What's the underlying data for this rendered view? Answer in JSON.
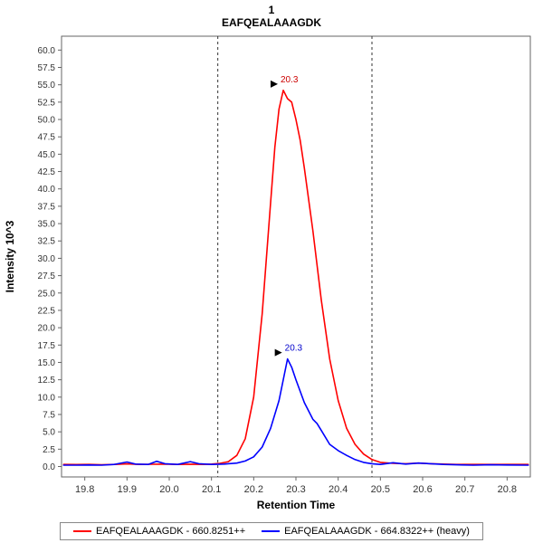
{
  "title": {
    "line1": "1",
    "line2": "EAFQEALAAAGDK"
  },
  "chart_data": {
    "type": "line",
    "title": "1",
    "subtitle": "EAFQEALAAAGDK",
    "xlabel": "Retention Time",
    "ylabel": "Intensity 10^3",
    "xlim": [
      19.745,
      20.855
    ],
    "ylim": [
      -1.5,
      62
    ],
    "grid": false,
    "legend_position": "bottom",
    "x_ticks": [
      "19.8",
      "19.9",
      "20.0",
      "20.1",
      "20.2",
      "20.3",
      "20.4",
      "20.5",
      "20.6",
      "20.7",
      "20.8"
    ],
    "y_ticks": [
      "0.0",
      "2.5",
      "5.0",
      "7.5",
      "10.0",
      "12.5",
      "15.0",
      "17.5",
      "20.0",
      "22.5",
      "25.0",
      "27.5",
      "30.0",
      "32.5",
      "35.0",
      "37.5",
      "40.0",
      "42.5",
      "45.0",
      "47.5",
      "50.0",
      "52.5",
      "55.0",
      "57.5",
      "60.0"
    ],
    "integration_boundaries": [
      20.115,
      20.48
    ],
    "series": [
      {
        "name": "EAFQEALAAAGDK - 660.8251++",
        "color": "#ff0000",
        "points": [
          [
            19.75,
            0.3
          ],
          [
            19.78,
            0.28
          ],
          [
            19.81,
            0.3
          ],
          [
            19.84,
            0.26
          ],
          [
            19.87,
            0.3
          ],
          [
            19.9,
            0.38
          ],
          [
            19.93,
            0.3
          ],
          [
            19.96,
            0.32
          ],
          [
            19.99,
            0.35
          ],
          [
            20.02,
            0.3
          ],
          [
            20.05,
            0.34
          ],
          [
            20.08,
            0.3
          ],
          [
            20.1,
            0.35
          ],
          [
            20.12,
            0.45
          ],
          [
            20.14,
            0.7
          ],
          [
            20.16,
            1.6
          ],
          [
            20.18,
            4.0
          ],
          [
            20.2,
            10.0
          ],
          [
            20.22,
            22.0
          ],
          [
            20.24,
            38.0
          ],
          [
            20.25,
            46.0
          ],
          [
            20.26,
            51.5
          ],
          [
            20.27,
            54.2
          ],
          [
            20.28,
            53.0
          ],
          [
            20.29,
            52.5
          ],
          [
            20.3,
            50.0
          ],
          [
            20.31,
            47.0
          ],
          [
            20.32,
            43.0
          ],
          [
            20.34,
            34.0
          ],
          [
            20.36,
            24.0
          ],
          [
            20.38,
            15.5
          ],
          [
            20.4,
            9.5
          ],
          [
            20.42,
            5.5
          ],
          [
            20.44,
            3.2
          ],
          [
            20.46,
            1.8
          ],
          [
            20.48,
            1.0
          ],
          [
            20.5,
            0.6
          ],
          [
            20.53,
            0.45
          ],
          [
            20.56,
            0.4
          ],
          [
            20.59,
            0.5
          ],
          [
            20.62,
            0.4
          ],
          [
            20.65,
            0.35
          ],
          [
            20.68,
            0.3
          ],
          [
            20.72,
            0.3
          ],
          [
            20.76,
            0.3
          ],
          [
            20.8,
            0.3
          ],
          [
            20.85,
            0.3
          ]
        ]
      },
      {
        "name": "EAFQEALAAAGDK - 664.8322++ (heavy)",
        "color": "#0000ff",
        "points": [
          [
            19.75,
            0.2
          ],
          [
            19.78,
            0.2
          ],
          [
            19.81,
            0.22
          ],
          [
            19.84,
            0.2
          ],
          [
            19.87,
            0.3
          ],
          [
            19.9,
            0.65
          ],
          [
            19.92,
            0.35
          ],
          [
            19.95,
            0.3
          ],
          [
            19.97,
            0.75
          ],
          [
            19.99,
            0.4
          ],
          [
            20.02,
            0.3
          ],
          [
            20.05,
            0.7
          ],
          [
            20.07,
            0.4
          ],
          [
            20.1,
            0.3
          ],
          [
            20.13,
            0.35
          ],
          [
            20.16,
            0.5
          ],
          [
            20.18,
            0.8
          ],
          [
            20.2,
            1.4
          ],
          [
            20.22,
            2.8
          ],
          [
            20.24,
            5.5
          ],
          [
            20.26,
            9.5
          ],
          [
            20.27,
            12.5
          ],
          [
            20.28,
            15.5
          ],
          [
            20.29,
            14.3
          ],
          [
            20.3,
            12.5
          ],
          [
            20.32,
            9.2
          ],
          [
            20.34,
            6.8
          ],
          [
            20.35,
            6.2
          ],
          [
            20.36,
            5.2
          ],
          [
            20.38,
            3.2
          ],
          [
            20.4,
            2.3
          ],
          [
            20.42,
            1.6
          ],
          [
            20.44,
            1.0
          ],
          [
            20.46,
            0.6
          ],
          [
            20.48,
            0.4
          ],
          [
            20.5,
            0.3
          ],
          [
            20.53,
            0.55
          ],
          [
            20.56,
            0.35
          ],
          [
            20.59,
            0.5
          ],
          [
            20.62,
            0.4
          ],
          [
            20.65,
            0.3
          ],
          [
            20.68,
            0.25
          ],
          [
            20.72,
            0.2
          ],
          [
            20.76,
            0.25
          ],
          [
            20.8,
            0.22
          ],
          [
            20.85,
            0.2
          ]
        ]
      }
    ],
    "annotations": [
      {
        "x": 20.27,
        "y": 54.2,
        "label": "20.3",
        "color": "#cc0000"
      },
      {
        "x": 20.28,
        "y": 15.5,
        "label": "20.3",
        "color": "#0000cc"
      }
    ]
  },
  "legend": {
    "items": [
      {
        "label": "EAFQEALAAAGDK - 660.8251++",
        "color": "#ff0000"
      },
      {
        "label": "EAFQEALAAAGDK - 664.8322++ (heavy)",
        "color": "#0000ff"
      }
    ]
  },
  "style": {
    "axis_color": "#666666",
    "tick_text_color": "#333333",
    "boundary_color": "#333333",
    "arrow_color": "#000000"
  }
}
